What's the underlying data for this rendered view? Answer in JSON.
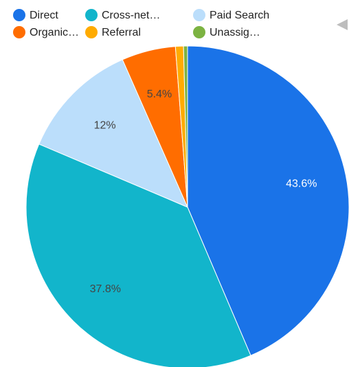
{
  "chart_data": {
    "type": "pie",
    "categories": [
      "Direct",
      "Cross-net…",
      "Paid Search",
      "Organic…",
      "Referral",
      "Unassig…"
    ],
    "values": [
      43.6,
      37.8,
      12,
      5.4,
      0.8,
      0.4
    ],
    "value_labels": [
      "43.6%",
      "37.8%",
      "12%",
      "5.4%",
      null,
      null
    ],
    "colors": [
      "#1a73e8",
      "#12b5cb",
      "#bbdefb",
      "#ff6d00",
      "#ffab00",
      "#7cb342"
    ]
  }
}
